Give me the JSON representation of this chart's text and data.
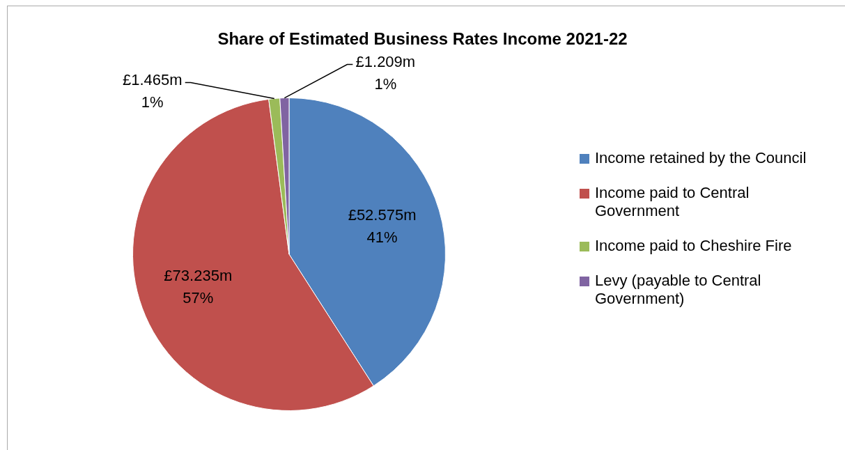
{
  "chart_data": {
    "type": "pie",
    "title": "Share of Estimated Business Rates Income 2021-22",
    "categories": [
      "Income retained by the Council",
      "Income paid to Central Government",
      "Income paid to Cheshire Fire",
      "Levy (payable to Central Government)"
    ],
    "values": [
      52.575,
      73.235,
      1.465,
      1.209
    ],
    "colors": [
      "#4f81bd",
      "#c0504d",
      "#9bbb59",
      "#8064a2"
    ],
    "value_labels": [
      "£52.575m",
      "£73.235m",
      "£1.465m",
      "£1.209m"
    ],
    "annotations": [
      "41%",
      "57%",
      "1%",
      "1%"
    ],
    "legend": "right"
  }
}
